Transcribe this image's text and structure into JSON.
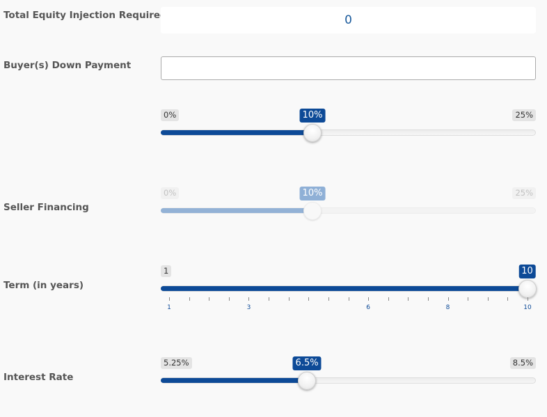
{
  "equity": {
    "label": "Total Equity Injection Required",
    "value": "0"
  },
  "down_payment": {
    "label": "Buyer(s) Down Payment",
    "input_value": "",
    "slider": {
      "min_label": "0%",
      "max_label": "25%",
      "value_label": "10%",
      "min": 0,
      "max": 25,
      "value": 10
    }
  },
  "seller_financing": {
    "label": "Seller Financing",
    "slider": {
      "min_label": "0%",
      "max_label": "25%",
      "value_label": "10%",
      "min": 0,
      "max": 25,
      "value": 10,
      "disabled": true
    }
  },
  "term": {
    "label": "Term (in years)",
    "slider": {
      "min_label": "1",
      "max_label": "10",
      "value_label": "10",
      "min": 1,
      "max": 10,
      "value": 10
    },
    "tick_labels": [
      "1",
      "3",
      "6",
      "8",
      "10"
    ]
  },
  "interest_rate": {
    "label": "Interest Rate",
    "slider": {
      "min_label": "5.25%",
      "max_label": "8.5%",
      "value_label": "6.5%",
      "min": 5.25,
      "max": 8.5,
      "value": 6.5
    }
  },
  "colors": {
    "accent": "#0d4a97",
    "accent_disabled": "#93b2d6",
    "value_text": "#1a5a9c"
  }
}
